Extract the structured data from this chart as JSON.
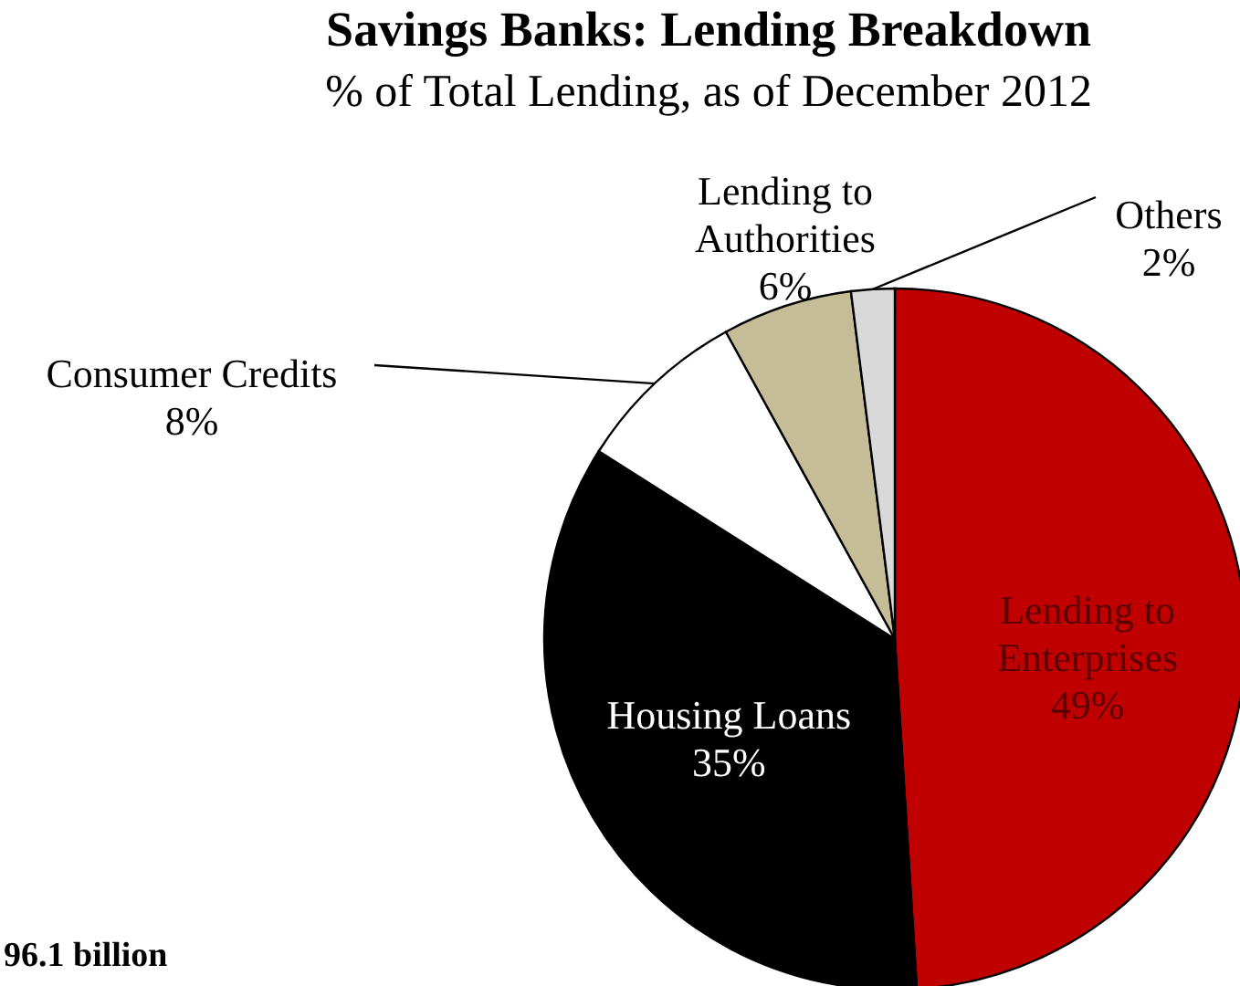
{
  "chart_data": {
    "type": "pie",
    "title": "Savings Banks: Lending Breakdown",
    "subtitle": "% of Total Lending, as of December 2012",
    "categories": [
      "Lending to Enterprises",
      "Housing Loans",
      "Consumer Credits",
      "Lending to Authorities",
      "Others"
    ],
    "values": [
      49,
      35,
      8,
      6,
      2
    ],
    "colors": [
      "#c00000",
      "#000000",
      "#ffffff",
      "#c4bd97",
      "#d9d9d9"
    ],
    "value_labels": [
      "49%",
      "35%",
      "8%",
      "6%",
      "2%"
    ],
    "annotations": [
      "96.1 billion"
    ]
  }
}
